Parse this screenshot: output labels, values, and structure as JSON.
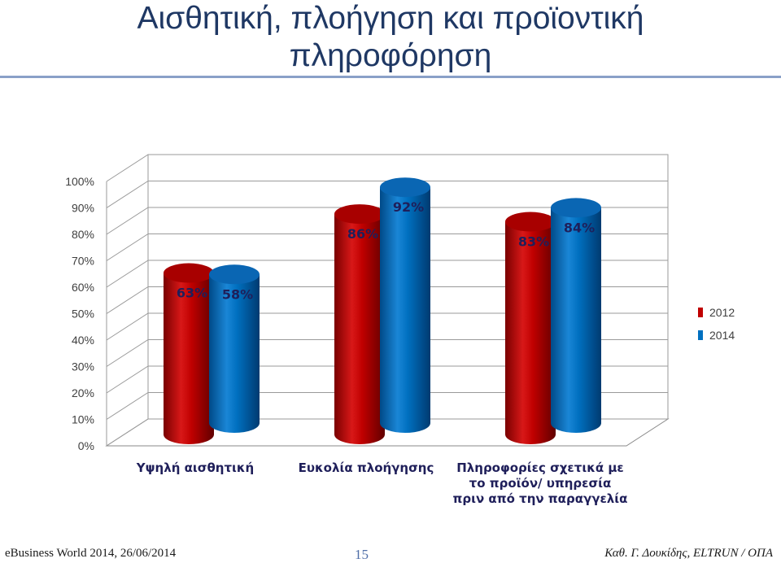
{
  "title_line1": "Αισθητική, πλοήγηση και προϊοντική",
  "title_line2": "πληροφόρηση",
  "footer": {
    "left": "eBusiness World 2014, 26/06/2014",
    "page": "15",
    "right": "Καθ. Γ. Δουκίδης, ELTRUN / ΟΠΑ"
  },
  "colors": {
    "series_2012": "#c00000",
    "series_2014": "#0070c0",
    "title": "#1f3864"
  },
  "chart_data": {
    "type": "bar",
    "categories": [
      [
        "Υψηλή αισθητική"
      ],
      [
        "Ευκολία πλοήγησης"
      ],
      [
        "Πληροφορίες σχετικά με",
        "το προϊόν/ υπηρεσία",
        "πριν από την παραγγελία"
      ]
    ],
    "series": [
      {
        "name": "2012",
        "values": [
          63,
          86,
          83
        ],
        "labels": [
          "63%",
          "86%",
          "83%"
        ]
      },
      {
        "name": "2014",
        "values": [
          58,
          92,
          84
        ],
        "labels": [
          "58%",
          "92%",
          "84%"
        ]
      }
    ],
    "ylim": [
      0,
      100
    ],
    "yticks": [
      "0%",
      "10%",
      "20%",
      "30%",
      "40%",
      "50%",
      "60%",
      "70%",
      "80%",
      "90%",
      "100%"
    ],
    "grid": true,
    "legend_position": "right",
    "style": "3d-cylinder"
  }
}
